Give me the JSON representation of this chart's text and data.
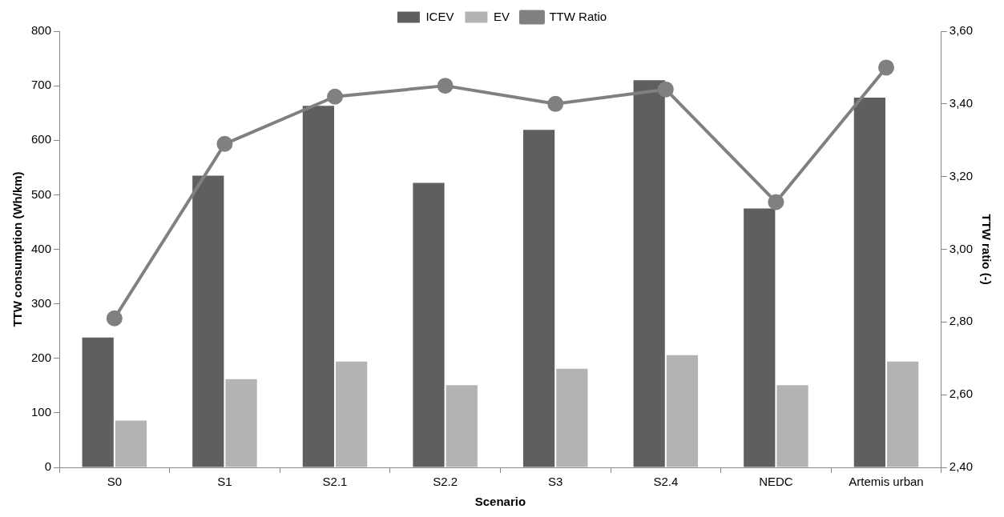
{
  "chart_data": {
    "type": "bar",
    "xlabel": "Scenario",
    "ylabel": "TTW consumption (Wh/km)",
    "y2label": "TTW ratio (-)",
    "categories": [
      "S0",
      "S1",
      "S2.1",
      "S2.2",
      "S3",
      "S2.4",
      "NEDC",
      "Artemis urban"
    ],
    "series": [
      {
        "name": "ICEV",
        "color": "#5f5f5f",
        "values": [
          238,
          535,
          663,
          522,
          619,
          710,
          475,
          678
        ]
      },
      {
        "name": "EV",
        "color": "#b3b3b3",
        "values": [
          86,
          162,
          194,
          151,
          181,
          206,
          151,
          194
        ]
      },
      {
        "name": "TTW Ratio",
        "type": "line",
        "axis": "y2",
        "color": "#808080",
        "marker": "circle",
        "values": [
          2.81,
          3.29,
          3.42,
          3.45,
          3.4,
          3.44,
          3.13,
          3.5
        ]
      }
    ],
    "ylim": [
      0,
      800
    ],
    "yticks": [
      0,
      100,
      200,
      300,
      400,
      500,
      600,
      700,
      800
    ],
    "y2lim": [
      2.4,
      3.6
    ],
    "y2ticks": [
      {
        "value": 2.4,
        "label": "2,40"
      },
      {
        "value": 2.6,
        "label": "2,60"
      },
      {
        "value": 2.8,
        "label": "2,80"
      },
      {
        "value": 3.0,
        "label": "3,00"
      },
      {
        "value": 3.2,
        "label": "3,20"
      },
      {
        "value": 3.4,
        "label": "3,40"
      },
      {
        "value": 3.6,
        "label": "3,60"
      }
    ],
    "grid": false,
    "legend": "top"
  }
}
